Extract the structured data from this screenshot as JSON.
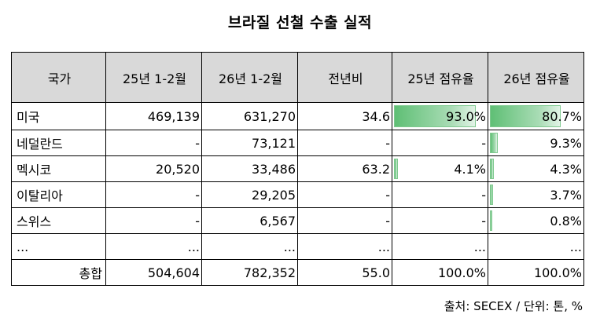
{
  "title": "브라질 선철 수출 실적",
  "headers": [
    "국가",
    "25년 1-2월",
    "26년 1-2월",
    "전년비",
    "25년 점유율",
    "26년 점유율"
  ],
  "rows": [
    {
      "country": "미국",
      "y25": "469,139",
      "y26": "631,270",
      "yoy": "34.6",
      "share25": "93.0%",
      "share26": "80.7%",
      "share25_value": 93.0,
      "share26_value": 80.7
    },
    {
      "country": "네덜란드",
      "y25": "-",
      "y26": "73,121",
      "yoy": "-",
      "share25": "-",
      "share26": "9.3%",
      "share25_value": 0,
      "share26_value": 9.3
    },
    {
      "country": "멕시코",
      "y25": "20,520",
      "y26": "33,486",
      "yoy": "63.2",
      "share25": "4.1%",
      "share26": "4.3%",
      "share25_value": 4.1,
      "share26_value": 4.3
    },
    {
      "country": "이탈리아",
      "y25": "-",
      "y26": "29,205",
      "yoy": "-",
      "share25": "-",
      "share26": "3.7%",
      "share25_value": 0,
      "share26_value": 3.7
    },
    {
      "country": "스위스",
      "y25": "-",
      "y26": "6,567",
      "yoy": "-",
      "share25": "-",
      "share26": "0.8%",
      "share25_value": 0,
      "share26_value": 0.8
    },
    {
      "country": "...",
      "y25": "...",
      "y26": "...",
      "yoy": "...",
      "share25": "...",
      "share26": "...",
      "share25_value": 0,
      "share26_value": 0
    }
  ],
  "total": {
    "label": "총합",
    "y25": "504,604",
    "y26": "782,352",
    "yoy": "55.0",
    "share25": "100.0%",
    "share26": "100.0%"
  },
  "source": "출처: SECEX / 단위: 톤, %",
  "colors": {
    "header_bg": "#d9d9d9",
    "bar": "#5fbf75"
  }
}
